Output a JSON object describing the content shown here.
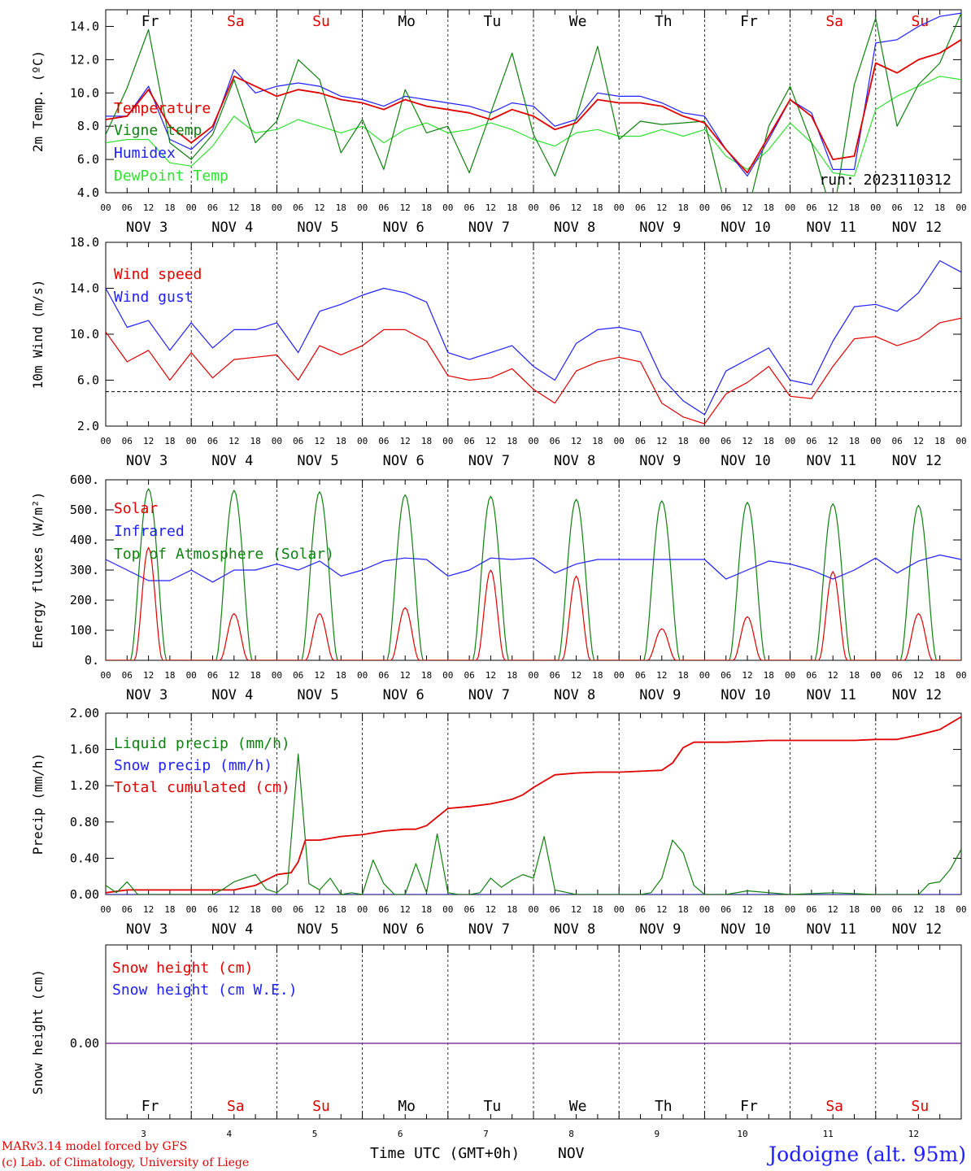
{
  "footer": {
    "model": "MARv3.14 model forced by GFS",
    "copyright": "(c) Lab. of Climatology, University of Liege",
    "xlabel": "Time UTC (GMT+0h)",
    "month": "NOV",
    "station": "Jodoigne (alt. 95m)",
    "color_red": "#e00000",
    "color_blue": "#2020ff"
  },
  "days": {
    "names": [
      "Fr",
      "Sa",
      "Su",
      "Mo",
      "Tu",
      "We",
      "Th",
      "Fr",
      "Sa",
      "Su"
    ],
    "weekend": [
      false,
      true,
      true,
      false,
      false,
      false,
      false,
      false,
      true,
      true
    ],
    "labels": [
      "NOV  3",
      "NOV  4",
      "NOV  5",
      "NOV  6",
      "NOV  7",
      "NOV  8",
      "NOV  9",
      "NOV 10",
      "NOV 11",
      "NOV 12"
    ],
    "numbers": [
      "3",
      "4",
      "5",
      "6",
      "7",
      "8",
      "9",
      "10",
      "11",
      "12"
    ],
    "hour_ticks": [
      "00",
      "06",
      "12",
      "18"
    ],
    "last_tick": "00"
  },
  "chart_data": [
    {
      "type": "line",
      "ylabel": "2m Temp. (ºC)",
      "ylim": [
        4,
        15
      ],
      "yticks": [
        "4.0",
        "6.0",
        "8.0",
        "10.0",
        "12.0",
        "14.0"
      ],
      "annotation": "run: 2023110312",
      "x_units": "hours since NOV 3 00 UTC",
      "series": [
        {
          "name": "Temperature",
          "color": "#e00000",
          "x": [
            0,
            6,
            12,
            18,
            24,
            30,
            36,
            42,
            48,
            54,
            60,
            66,
            72,
            78,
            84,
            90,
            96,
            102,
            108,
            114,
            120,
            126,
            132,
            138,
            144,
            150,
            156,
            162,
            168,
            174,
            180,
            186,
            192,
            198,
            204,
            210,
            216,
            222,
            228,
            234,
            240
          ],
          "values": [
            8.4,
            8.6,
            10.2,
            8.0,
            7.0,
            8.0,
            11.0,
            10.4,
            9.8,
            10.2,
            10.0,
            9.6,
            9.4,
            9.0,
            9.6,
            9.2,
            9.0,
            8.8,
            8.4,
            9.0,
            8.6,
            7.8,
            8.2,
            9.6,
            9.4,
            9.4,
            9.2,
            8.6,
            8.2,
            6.6,
            5.2,
            7.4,
            9.6,
            8.6,
            6.0,
            6.2,
            11.8,
            11.2,
            12.0,
            12.4,
            13.2
          ]
        },
        {
          "name": "Vigne temp",
          "color": "#108010",
          "x": [
            0,
            6,
            12,
            18,
            24,
            30,
            36,
            42,
            48,
            54,
            60,
            66,
            72,
            78,
            84,
            90,
            96,
            102,
            108,
            114,
            120,
            126,
            132,
            138,
            144,
            150,
            156,
            162,
            168,
            174,
            180,
            186,
            192,
            198,
            204,
            210,
            216,
            222,
            228,
            234,
            240
          ],
          "values": [
            7.5,
            10.3,
            13.8,
            7.0,
            6.0,
            7.5,
            10.8,
            7.0,
            8.3,
            12.0,
            10.8,
            6.4,
            8.4,
            5.4,
            10.2,
            7.6,
            8.0,
            5.2,
            8.8,
            12.4,
            7.5,
            5.0,
            8.5,
            12.8,
            7.2,
            8.3,
            8.1,
            8.2,
            8.3,
            3.0,
            2.8,
            8.0,
            10.4,
            7.0,
            2.5,
            10.5,
            14.5,
            8.0,
            10.5,
            11.8,
            14.8
          ]
        },
        {
          "name": "Humidex",
          "color": "#2020ff",
          "x": [
            0,
            6,
            12,
            18,
            24,
            30,
            36,
            42,
            48,
            54,
            60,
            66,
            72,
            78,
            84,
            90,
            96,
            102,
            108,
            114,
            120,
            126,
            132,
            138,
            144,
            150,
            156,
            162,
            168,
            174,
            180,
            186,
            192,
            198,
            204,
            210,
            216,
            222,
            228,
            234,
            240
          ],
          "values": [
            8.6,
            8.6,
            10.4,
            7.2,
            6.6,
            7.8,
            11.4,
            10.0,
            10.4,
            10.6,
            10.4,
            9.8,
            9.6,
            9.2,
            9.8,
            9.6,
            9.4,
            9.2,
            8.8,
            9.4,
            9.2,
            8.0,
            8.4,
            10.0,
            9.8,
            9.8,
            9.4,
            8.8,
            8.6,
            6.6,
            5.0,
            7.2,
            9.6,
            8.8,
            5.4,
            5.4,
            13.0,
            13.2,
            14.0,
            14.6,
            14.8
          ]
        },
        {
          "name": "DewPoint Temp",
          "color": "#30e030",
          "x": [
            0,
            6,
            12,
            18,
            24,
            30,
            36,
            42,
            48,
            54,
            60,
            66,
            72,
            78,
            84,
            90,
            96,
            102,
            108,
            114,
            120,
            126,
            132,
            138,
            144,
            150,
            156,
            162,
            168,
            174,
            180,
            186,
            192,
            198,
            204,
            210,
            216,
            222,
            228,
            234,
            240
          ],
          "values": [
            7.0,
            7.2,
            7.2,
            5.8,
            5.6,
            6.8,
            8.6,
            7.6,
            7.8,
            8.4,
            8.0,
            7.6,
            8.0,
            7.0,
            7.8,
            8.2,
            7.6,
            7.8,
            8.2,
            7.8,
            7.2,
            6.8,
            7.6,
            7.8,
            7.4,
            7.4,
            7.8,
            7.4,
            7.8,
            6.2,
            5.4,
            6.6,
            8.2,
            7.0,
            5.2,
            5.0,
            9.0,
            9.8,
            10.4,
            11.0,
            10.8
          ]
        }
      ]
    },
    {
      "type": "line",
      "ylabel": "10m Wind (m/s)",
      "ylim": [
        2,
        18
      ],
      "yticks": [
        "2.0",
        "6.0",
        "10.0",
        "14.0",
        "18.0"
      ],
      "reference_line": 5,
      "x_units": "hours since NOV 3 00 UTC",
      "series": [
        {
          "name": "Wind speed",
          "color": "#e00000",
          "x": [
            0,
            6,
            12,
            18,
            24,
            30,
            36,
            42,
            48,
            54,
            60,
            66,
            72,
            78,
            84,
            90,
            96,
            102,
            108,
            114,
            120,
            126,
            132,
            138,
            144,
            150,
            156,
            162,
            168,
            174,
            180,
            186,
            192,
            198,
            204,
            210,
            216,
            222,
            228,
            234,
            240
          ],
          "values": [
            10.2,
            7.6,
            8.6,
            6.0,
            8.4,
            6.2,
            7.8,
            8.0,
            8.2,
            6.0,
            9.0,
            8.2,
            9.0,
            10.4,
            10.4,
            9.4,
            6.4,
            6.0,
            6.2,
            7.0,
            5.2,
            4.0,
            6.8,
            7.6,
            8.0,
            7.6,
            4.0,
            2.8,
            2.2,
            4.8,
            5.8,
            7.2,
            4.6,
            4.4,
            7.2,
            9.6,
            9.8,
            9.0,
            9.6,
            11.0,
            11.4
          ]
        },
        {
          "name": "Wind gust",
          "color": "#2020ff",
          "x": [
            0,
            6,
            12,
            18,
            24,
            30,
            36,
            42,
            48,
            54,
            60,
            66,
            72,
            78,
            84,
            90,
            96,
            102,
            108,
            114,
            120,
            126,
            132,
            138,
            144,
            150,
            156,
            162,
            168,
            174,
            180,
            186,
            192,
            198,
            204,
            210,
            216,
            222,
            228,
            234,
            240
          ],
          "values": [
            14.0,
            10.6,
            11.2,
            8.6,
            11.0,
            8.8,
            10.4,
            10.4,
            11.0,
            8.4,
            12.0,
            12.6,
            13.4,
            14.0,
            13.6,
            12.8,
            8.4,
            7.8,
            8.4,
            9.0,
            7.2,
            6.0,
            9.2,
            10.4,
            10.6,
            10.2,
            6.2,
            4.2,
            3.0,
            6.8,
            7.8,
            8.8,
            6.0,
            5.6,
            9.4,
            12.4,
            12.6,
            12.0,
            13.6,
            16.4,
            15.4
          ]
        }
      ]
    },
    {
      "type": "line",
      "ylabel": "Energy fluxes (W/m²)",
      "ylim": [
        0,
        600
      ],
      "yticks": [
        "0.",
        "100.",
        "200.",
        "300.",
        "400.",
        "500.",
        "600."
      ],
      "x_units": "hours since NOV 3 00 UTC",
      "series": [
        {
          "name": "Solar",
          "color": "#e00000",
          "peaks": [
            375,
            155,
            155,
            175,
            300,
            280,
            105,
            145,
            295,
            155
          ]
        },
        {
          "name": "Infrared",
          "color": "#2020ff",
          "x": [
            0,
            6,
            12,
            18,
            24,
            30,
            36,
            42,
            48,
            54,
            60,
            66,
            72,
            78,
            84,
            90,
            96,
            102,
            108,
            114,
            120,
            126,
            132,
            138,
            144,
            150,
            156,
            162,
            168,
            174,
            180,
            186,
            192,
            198,
            204,
            210,
            216,
            222,
            228,
            234,
            240
          ],
          "values": [
            335,
            300,
            265,
            265,
            300,
            260,
            300,
            300,
            320,
            300,
            330,
            280,
            300,
            330,
            340,
            335,
            280,
            300,
            340,
            335,
            340,
            290,
            320,
            335,
            335,
            335,
            335,
            335,
            335,
            270,
            300,
            330,
            320,
            300,
            270,
            300,
            340,
            290,
            330,
            350,
            335
          ]
        },
        {
          "name": "Top of Atmosphere (Solar)",
          "color": "#108010",
          "peaks": [
            570,
            565,
            560,
            550,
            545,
            535,
            530,
            525,
            520,
            515
          ]
        }
      ]
    },
    {
      "type": "line",
      "ylabel": "Precip (mm/h)",
      "ylim": [
        0,
        2
      ],
      "yticks": [
        "0.00",
        "0.40",
        "0.80",
        "1.20",
        "1.60",
        "2.00"
      ],
      "x_units": "hours since NOV 3 00 UTC",
      "series": [
        {
          "name": "Liquid precip (mm/h)",
          "color": "#108010",
          "x": [
            0,
            3,
            6,
            9,
            12,
            15,
            18,
            24,
            30,
            33,
            36,
            39,
            42,
            45,
            48,
            51,
            54,
            57,
            60,
            63,
            66,
            69,
            72,
            75,
            78,
            81,
            84,
            87,
            90,
            93,
            96,
            99,
            102,
            105,
            108,
            111,
            114,
            117,
            120,
            123,
            126,
            132,
            138,
            144,
            150,
            153,
            156,
            159,
            162,
            165,
            168,
            174,
            180,
            192,
            204,
            216,
            228,
            231,
            234,
            237,
            240
          ],
          "values": [
            0.1,
            0.02,
            0.14,
            0.0,
            0.0,
            0.0,
            0.0,
            0.0,
            0.0,
            0.06,
            0.14,
            0.18,
            0.22,
            0.06,
            0.02,
            0.12,
            1.55,
            0.12,
            0.05,
            0.18,
            0.0,
            0.02,
            0.0,
            0.38,
            0.12,
            0.0,
            0.0,
            0.34,
            0.02,
            0.67,
            0.02,
            0.0,
            0.0,
            0.02,
            0.18,
            0.08,
            0.16,
            0.22,
            0.18,
            0.64,
            0.05,
            0.0,
            0.0,
            0.0,
            0.0,
            0.02,
            0.18,
            0.6,
            0.46,
            0.1,
            0.0,
            0.0,
            0.04,
            0.0,
            0.02,
            0.0,
            0.0,
            0.12,
            0.14,
            0.28,
            0.5
          ]
        },
        {
          "name": "Snow precip (mm/h)",
          "color": "#2020ff",
          "x": [
            0,
            240
          ],
          "values": [
            0,
            0
          ]
        },
        {
          "name": "Total cumulated (cm)",
          "color": "#e00000",
          "x": [
            0,
            6,
            12,
            18,
            24,
            30,
            36,
            42,
            48,
            52,
            54,
            56,
            60,
            66,
            72,
            78,
            84,
            87,
            90,
            96,
            102,
            108,
            114,
            117,
            120,
            126,
            132,
            138,
            144,
            150,
            156,
            159,
            162,
            165,
            168,
            174,
            180,
            186,
            192,
            198,
            204,
            210,
            216,
            222,
            228,
            234,
            240
          ],
          "values": [
            0.02,
            0.05,
            0.05,
            0.05,
            0.05,
            0.05,
            0.05,
            0.1,
            0.22,
            0.24,
            0.36,
            0.6,
            0.6,
            0.64,
            0.66,
            0.7,
            0.72,
            0.72,
            0.76,
            0.95,
            0.97,
            1.0,
            1.05,
            1.1,
            1.18,
            1.32,
            1.34,
            1.35,
            1.35,
            1.36,
            1.37,
            1.45,
            1.62,
            1.68,
            1.68,
            1.68,
            1.69,
            1.7,
            1.7,
            1.7,
            1.7,
            1.7,
            1.71,
            1.71,
            1.76,
            1.82,
            1.96
          ]
        }
      ]
    },
    {
      "type": "line",
      "ylabel": "Snow height (cm)",
      "yticks": [
        "0.00"
      ],
      "x_units": "hours since NOV 3 00 UTC",
      "series": [
        {
          "name": "Snow height (cm)",
          "color": "#e00000",
          "x": [
            0,
            240
          ],
          "values": [
            0,
            0
          ]
        },
        {
          "name": "Snow height (cm W.E.)",
          "color": "#2020ff",
          "x": [
            0,
            240
          ],
          "values": [
            0,
            0
          ]
        }
      ]
    }
  ]
}
